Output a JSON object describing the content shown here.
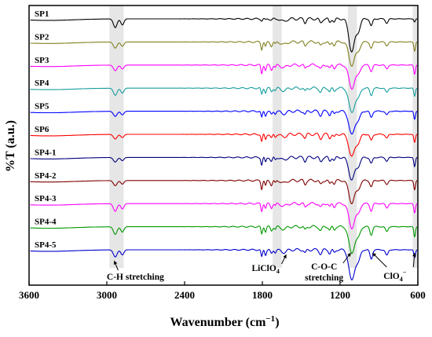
{
  "chart_data": {
    "type": "line",
    "title": "",
    "xlabel": "Wavenumber (cm",
    "xlabel_sup": "−1",
    "xlabel_end": ")",
    "ylabel": "%T (a.u.)",
    "x_range": [
      3600,
      600
    ],
    "x_ticks": [
      3600,
      3000,
      2400,
      1800,
      1200,
      600
    ],
    "x_tick_labels": [
      "3600",
      "3000",
      "2400",
      "1800",
      "1200",
      "600"
    ],
    "shaded_bands": [
      {
        "from": 2980,
        "to": 2870
      },
      {
        "from": 1720,
        "to": 1650
      },
      {
        "from": 1140,
        "to": 1070
      },
      {
        "from": 640,
        "to": 600
      }
    ],
    "annotations": [
      {
        "id": "ch",
        "lines": [
          "C-H stretching"
        ],
        "x": 2925
      },
      {
        "id": "liclo4",
        "lines": [
          "LiClO",
          "4"
        ],
        "x": 1700
      },
      {
        "id": "coc",
        "lines": [
          "C-O-C",
          "stretching"
        ],
        "x": 1105
      },
      {
        "id": "clo4",
        "lines": [
          "ClO",
          "4",
          "−"
        ],
        "x": 780
      }
    ],
    "series": [
      {
        "name": "SP1",
        "color": "#000000",
        "d1800": 0.2,
        "dCH": 0.85,
        "d1100": 3.2,
        "d950": 0.7,
        "d620": 0.3,
        "offset": 0
      },
      {
        "name": "SP2",
        "color": "#808020",
        "d1800": 0.8,
        "dCH": 0.6,
        "d1100": 2.3,
        "d950": 0.6,
        "d620": 0.9,
        "offset": 1
      },
      {
        "name": "SP3",
        "color": "#ff00ff",
        "d1800": 0.9,
        "dCH": 0.55,
        "d1100": 2.3,
        "d950": 0.6,
        "d620": 0.9,
        "offset": 2
      },
      {
        "name": "SP4",
        "color": "#199d9d",
        "d1800": 0.7,
        "dCH": 0.7,
        "d1100": 2.4,
        "d950": 0.7,
        "d620": 0.8,
        "offset": 3
      },
      {
        "name": "SP5",
        "color": "#0000ff",
        "d1800": 0.7,
        "dCH": 0.5,
        "d1100": 2.3,
        "d950": 0.6,
        "d620": 0.8,
        "offset": 4
      },
      {
        "name": "SP6",
        "color": "#ff0000",
        "d1800": 0.8,
        "dCH": 0.45,
        "d1100": 2.2,
        "d950": 0.6,
        "d620": 0.8,
        "offset": 5
      },
      {
        "name": "SP4-1",
        "color": "#000080",
        "d1800": 0.8,
        "dCH": 0.45,
        "d1100": 2.2,
        "d950": 0.6,
        "d620": 0.9,
        "offset": 6
      },
      {
        "name": "SP4-2",
        "color": "#800000",
        "d1800": 0.9,
        "dCH": 0.5,
        "d1100": 2.2,
        "d950": 0.6,
        "d620": 0.9,
        "offset": 7
      },
      {
        "name": "SP4-3",
        "color": "#ff00ff",
        "d1800": 0.8,
        "dCH": 0.75,
        "d1100": 2.4,
        "d950": 0.7,
        "d620": 0.9,
        "offset": 8
      },
      {
        "name": "SP4-4",
        "color": "#009900",
        "d1800": 0.8,
        "dCH": 0.75,
        "d1100": 2.6,
        "d950": 0.8,
        "d620": 1.0,
        "offset": 9
      },
      {
        "name": "SP4-5",
        "color": "#0000cc",
        "d1800": 0.8,
        "dCH": 0.7,
        "d1100": 3.0,
        "d950": 0.9,
        "d620": 0.8,
        "offset": 10
      }
    ]
  }
}
